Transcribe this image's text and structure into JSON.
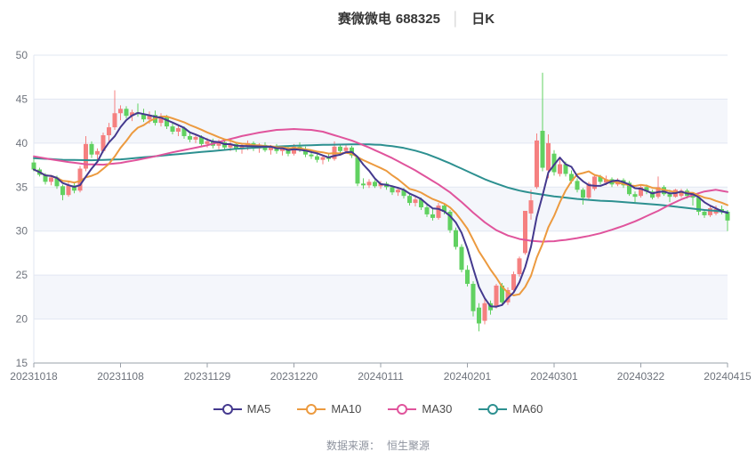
{
  "header": {
    "stock_name": "赛微微电",
    "stock_code": "688325",
    "divider": "│",
    "period": "日K"
  },
  "legend": [
    {
      "label": "MA5",
      "color": "#44398e"
    },
    {
      "label": "MA10",
      "color": "#ec9a3f"
    },
    {
      "label": "MA30",
      "color": "#e0549c"
    },
    {
      "label": "MA60",
      "color": "#2d9090"
    }
  ],
  "footer": {
    "label": "数据来源：",
    "value": "恒生聚源"
  },
  "chart_data": {
    "type": "candlestick",
    "title": "赛微微电 688325 日K",
    "y_axis": {
      "min": 15,
      "max": 50,
      "step": 5,
      "ticks": [
        15,
        20,
        25,
        30,
        35,
        40,
        45,
        50
      ]
    },
    "x_ticks": [
      {
        "day": 0,
        "label": "20231018"
      },
      {
        "day": 15,
        "label": "20231108"
      },
      {
        "day": 30,
        "label": "20231129"
      },
      {
        "day": 45,
        "label": "20231220"
      },
      {
        "day": 60,
        "label": "20240111"
      },
      {
        "day": 75,
        "label": "20240201"
      },
      {
        "day": 90,
        "label": "20240301"
      },
      {
        "day": 105,
        "label": "20240322"
      },
      {
        "day": 120,
        "label": "20240415"
      }
    ],
    "colors": {
      "up": "#f58080",
      "down": "#61d161",
      "ma5": "#44398e",
      "ma10": "#ec9a3f",
      "ma30": "#e0549c",
      "ma60": "#2d9090",
      "grid": "#e2e7f2",
      "band": "#f4f6fb",
      "axis": "#9aa0a8",
      "tick_text": "#6e737c"
    },
    "candles_format": [
      "open",
      "high",
      "low",
      "close"
    ],
    "candles": [
      [
        37.8,
        38.2,
        36.8,
        37.0
      ],
      [
        37.0,
        37.2,
        36.2,
        36.4
      ],
      [
        36.4,
        36.6,
        35.3,
        35.6
      ],
      [
        35.6,
        36.4,
        35.2,
        36.1
      ],
      [
        36.1,
        36.3,
        34.8,
        35.1
      ],
      [
        35.1,
        35.3,
        33.5,
        34.1
      ],
      [
        34.1,
        35.6,
        33.9,
        35.2
      ],
      [
        35.2,
        35.5,
        34.3,
        34.6
      ],
      [
        34.6,
        37.4,
        34.4,
        37.1
      ],
      [
        37.1,
        40.8,
        36.8,
        39.9
      ],
      [
        39.9,
        40.2,
        38.3,
        38.7
      ],
      [
        38.7,
        39.4,
        38.0,
        39.1
      ],
      [
        39.1,
        41.2,
        38.9,
        40.9
      ],
      [
        40.9,
        42.3,
        40.2,
        41.8
      ],
      [
        41.8,
        46.0,
        41.5,
        43.4
      ],
      [
        43.4,
        44.3,
        42.6,
        43.9
      ],
      [
        43.9,
        44.2,
        42.8,
        43.1
      ],
      [
        43.1,
        43.8,
        42.5,
        43.5
      ],
      [
        43.5,
        44.5,
        43.0,
        43.3
      ],
      [
        43.3,
        43.9,
        42.4,
        42.7
      ],
      [
        42.7,
        43.6,
        42.2,
        43.2
      ],
      [
        43.2,
        43.7,
        42.0,
        42.3
      ],
      [
        42.3,
        43.4,
        41.9,
        43.0
      ],
      [
        43.0,
        43.2,
        41.6,
        41.9
      ],
      [
        41.9,
        42.4,
        41.0,
        41.3
      ],
      [
        41.3,
        42.0,
        40.8,
        41.7
      ],
      [
        41.7,
        41.9,
        40.5,
        40.8
      ],
      [
        40.8,
        41.2,
        40.1,
        40.4
      ],
      [
        40.4,
        41.0,
        40.0,
        40.7
      ],
      [
        40.7,
        40.9,
        39.6,
        39.9
      ],
      [
        39.9,
        40.6,
        39.5,
        40.2
      ],
      [
        40.2,
        40.5,
        39.4,
        39.7
      ],
      [
        39.7,
        40.4,
        39.3,
        40.1
      ],
      [
        40.1,
        40.3,
        39.2,
        39.5
      ],
      [
        39.5,
        40.2,
        39.1,
        39.9
      ],
      [
        39.9,
        40.1,
        39.0,
        39.3
      ],
      [
        39.3,
        39.9,
        38.8,
        39.6
      ],
      [
        39.6,
        40.3,
        39.2,
        40.0
      ],
      [
        40.0,
        40.2,
        39.1,
        39.4
      ],
      [
        39.4,
        40.0,
        38.9,
        39.8
      ],
      [
        39.8,
        40.1,
        39.0,
        39.2
      ],
      [
        39.2,
        39.8,
        38.7,
        39.6
      ],
      [
        39.6,
        39.9,
        38.8,
        39.1
      ],
      [
        39.1,
        39.7,
        38.6,
        39.4
      ],
      [
        39.4,
        39.6,
        38.5,
        38.8
      ],
      [
        38.8,
        39.9,
        38.6,
        39.6
      ],
      [
        39.6,
        40.1,
        39.0,
        39.3
      ],
      [
        39.3,
        39.6,
        38.4,
        38.7
      ],
      [
        38.7,
        39.2,
        38.2,
        38.5
      ],
      [
        38.5,
        38.9,
        37.8,
        38.1
      ],
      [
        38.1,
        38.6,
        37.6,
        38.4
      ],
      [
        38.4,
        38.8,
        37.9,
        38.2
      ],
      [
        38.2,
        40.2,
        38.0,
        39.6
      ],
      [
        39.6,
        39.9,
        38.8,
        39.1
      ],
      [
        39.1,
        39.8,
        38.9,
        39.5
      ],
      [
        39.5,
        39.7,
        38.3,
        38.6
      ],
      [
        38.4,
        38.5,
        35.1,
        35.4
      ],
      [
        35.4,
        36.0,
        34.8,
        35.2
      ],
      [
        35.2,
        35.9,
        34.9,
        35.6
      ],
      [
        35.6,
        35.8,
        34.9,
        35.1
      ],
      [
        35.1,
        35.7,
        34.8,
        35.4
      ],
      [
        35.4,
        35.6,
        34.7,
        35.0
      ],
      [
        35.0,
        35.2,
        34.1,
        34.4
      ],
      [
        34.4,
        35.0,
        34.0,
        34.7
      ],
      [
        34.7,
        34.9,
        33.7,
        34.0
      ],
      [
        34.0,
        34.3,
        32.9,
        33.2
      ],
      [
        33.2,
        33.9,
        32.8,
        33.6
      ],
      [
        33.6,
        33.8,
        32.4,
        32.7
      ],
      [
        32.7,
        33.0,
        31.6,
        31.9
      ],
      [
        31.9,
        32.5,
        31.2,
        31.5
      ],
      [
        31.5,
        33.2,
        31.3,
        32.9
      ],
      [
        32.9,
        33.1,
        31.9,
        32.2
      ],
      [
        32.2,
        32.4,
        29.8,
        30.1
      ],
      [
        30.1,
        30.4,
        27.9,
        28.2
      ],
      [
        28.2,
        28.5,
        25.3,
        25.6
      ],
      [
        25.6,
        26.1,
        23.7,
        24.0
      ],
      [
        24.0,
        24.3,
        20.3,
        20.9
      ],
      [
        21.3,
        21.8,
        18.6,
        19.5
      ],
      [
        19.8,
        22.4,
        19.4,
        21.8
      ],
      [
        21.8,
        22.1,
        20.5,
        21.0
      ],
      [
        21.4,
        24.0,
        21.2,
        23.8
      ],
      [
        23.8,
        24.1,
        21.5,
        21.9
      ],
      [
        21.9,
        23.6,
        21.6,
        23.3
      ],
      [
        23.3,
        25.4,
        23.0,
        25.1
      ],
      [
        25.1,
        27.1,
        24.8,
        26.9
      ],
      [
        27.5,
        32.3,
        27.3,
        32.3
      ],
      [
        32.0,
        34.7,
        31.3,
        33.5
      ],
      [
        35.0,
        41.1,
        34.8,
        40.3
      ],
      [
        41.4,
        48.0,
        36.8,
        37.2
      ],
      [
        36.9,
        41.0,
        36.0,
        40.0
      ],
      [
        38.8,
        39.2,
        36.3,
        36.7
      ],
      [
        36.5,
        38.3,
        36.2,
        37.6
      ],
      [
        37.6,
        37.9,
        36.2,
        36.5
      ],
      [
        36.5,
        36.9,
        35.4,
        35.7
      ],
      [
        35.7,
        36.0,
        34.4,
        34.7
      ],
      [
        34.7,
        34.9,
        33.0,
        33.8
      ],
      [
        33.8,
        35.6,
        33.6,
        35.4
      ],
      [
        34.8,
        36.4,
        34.6,
        36.2
      ],
      [
        36.2,
        36.4,
        35.3,
        35.6
      ],
      [
        35.5,
        36.3,
        35.2,
        35.9
      ],
      [
        35.9,
        36.1,
        35.0,
        35.3
      ],
      [
        35.3,
        36.0,
        35.1,
        35.8
      ],
      [
        35.8,
        36.0,
        34.9,
        35.2
      ],
      [
        35.5,
        35.7,
        34.0,
        34.2
      ],
      [
        34.2,
        34.5,
        33.3,
        33.9
      ],
      [
        34.0,
        35.2,
        33.8,
        35.0
      ],
      [
        35.0,
        35.3,
        34.2,
        34.5
      ],
      [
        34.5,
        34.7,
        33.6,
        33.8
      ],
      [
        33.9,
        36.2,
        33.7,
        35.0
      ],
      [
        35.0,
        35.2,
        34.0,
        34.2
      ],
      [
        34.2,
        34.7,
        33.3,
        33.9
      ],
      [
        33.9,
        34.8,
        33.8,
        34.7
      ],
      [
        34.0,
        34.8,
        33.8,
        34.6
      ],
      [
        34.6,
        34.8,
        33.7,
        34.0
      ],
      [
        34.0,
        34.3,
        32.9,
        33.8
      ],
      [
        33.8,
        33.9,
        31.8,
        32.2
      ],
      [
        32.2,
        32.5,
        31.5,
        31.8
      ],
      [
        31.8,
        32.8,
        31.6,
        32.6
      ],
      [
        32.0,
        32.9,
        31.8,
        32.5
      ],
      [
        32.5,
        32.9,
        31.9,
        32.2
      ],
      [
        32.2,
        32.4,
        30.0,
        31.2
      ]
    ],
    "ma5_window": 5,
    "ma10_window": 10,
    "ma30_points": [
      [
        0,
        38.5
      ],
      [
        3,
        38.15
      ],
      [
        6,
        37.85
      ],
      [
        9,
        37.6
      ],
      [
        12,
        37.55
      ],
      [
        15,
        37.75
      ],
      [
        18,
        38.1
      ],
      [
        21,
        38.5
      ],
      [
        24,
        38.95
      ],
      [
        27,
        39.35
      ],
      [
        30,
        39.75
      ],
      [
        33,
        40.3
      ],
      [
        36,
        40.8
      ],
      [
        39,
        41.2
      ],
      [
        42,
        41.5
      ],
      [
        45,
        41.6
      ],
      [
        48,
        41.5
      ],
      [
        50,
        41.3
      ],
      [
        52,
        40.9
      ],
      [
        55,
        40.3
      ],
      [
        58,
        39.5
      ],
      [
        60,
        38.9
      ],
      [
        62,
        38.3
      ],
      [
        64,
        37.6
      ],
      [
        66,
        36.9
      ],
      [
        68,
        36.1
      ],
      [
        70,
        35.3
      ],
      [
        72,
        34.4
      ],
      [
        74,
        33.3
      ],
      [
        76,
        32.1
      ],
      [
        78,
        31.0
      ],
      [
        80,
        30.1
      ],
      [
        82,
        29.5
      ],
      [
        84,
        29.1
      ],
      [
        86,
        28.9
      ],
      [
        88,
        28.8
      ],
      [
        90,
        28.85
      ],
      [
        92,
        29.0
      ],
      [
        94,
        29.2
      ],
      [
        96,
        29.45
      ],
      [
        98,
        29.75
      ],
      [
        100,
        30.15
      ],
      [
        102,
        30.6
      ],
      [
        104,
        31.1
      ],
      [
        106,
        31.7
      ],
      [
        108,
        32.3
      ],
      [
        110,
        33.0
      ],
      [
        112,
        33.6
      ],
      [
        114,
        34.1
      ],
      [
        116,
        34.5
      ],
      [
        118,
        34.7
      ],
      [
        120,
        34.45
      ]
    ],
    "ma60_points": [
      [
        0,
        38.3
      ],
      [
        5,
        38.1
      ],
      [
        10,
        38.05
      ],
      [
        15,
        38.15
      ],
      [
        20,
        38.45
      ],
      [
        25,
        38.75
      ],
      [
        30,
        39.05
      ],
      [
        35,
        39.35
      ],
      [
        40,
        39.55
      ],
      [
        45,
        39.7
      ],
      [
        50,
        39.8
      ],
      [
        55,
        39.85
      ],
      [
        58,
        39.85
      ],
      [
        60,
        39.8
      ],
      [
        62,
        39.65
      ],
      [
        64,
        39.45
      ],
      [
        66,
        39.15
      ],
      [
        68,
        38.75
      ],
      [
        70,
        38.25
      ],
      [
        72,
        37.7
      ],
      [
        74,
        37.1
      ],
      [
        76,
        36.5
      ],
      [
        78,
        35.9
      ],
      [
        80,
        35.4
      ],
      [
        82,
        34.95
      ],
      [
        84,
        34.6
      ],
      [
        86,
        34.35
      ],
      [
        88,
        34.15
      ],
      [
        90,
        33.95
      ],
      [
        92,
        33.8
      ],
      [
        94,
        33.65
      ],
      [
        96,
        33.55
      ],
      [
        98,
        33.45
      ],
      [
        100,
        33.4
      ],
      [
        102,
        33.3
      ],
      [
        104,
        33.2
      ],
      [
        106,
        33.1
      ],
      [
        108,
        33.0
      ],
      [
        110,
        32.85
      ],
      [
        112,
        32.7
      ],
      [
        114,
        32.55
      ],
      [
        116,
        32.4
      ],
      [
        118,
        32.3
      ],
      [
        120,
        32.15
      ]
    ]
  }
}
